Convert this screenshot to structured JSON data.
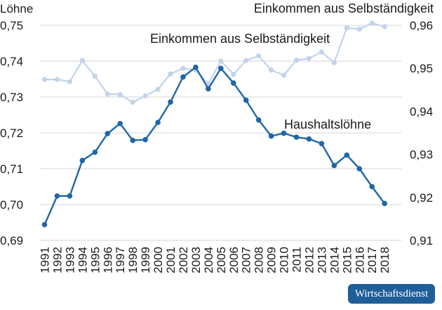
{
  "brand": {
    "label": "Wirtschaftsdienst",
    "color": "#1f5e98"
  },
  "chart_data": {
    "type": "line",
    "title": "",
    "grid": true,
    "x": [
      "1991",
      "1992",
      "1993",
      "1994",
      "1995",
      "1996",
      "1997",
      "1998",
      "1999",
      "2000",
      "2001",
      "2002",
      "2003",
      "2004",
      "2005",
      "2006",
      "2007",
      "2008",
      "2009",
      "2010",
      "2011",
      "2012",
      "2013",
      "2014",
      "2015",
      "2016",
      "2017",
      "2018"
    ],
    "y_left": {
      "label": "Löhne",
      "range": [
        0.69,
        0.75
      ],
      "ticks": [
        "0,69",
        "0,70",
        "0,71",
        "0,72",
        "0,73",
        "0,74",
        "0,75"
      ]
    },
    "y_right": {
      "label": "Einkommen aus Selbständigkeit",
      "range": [
        0.91,
        0.96
      ],
      "ticks": [
        "0,91",
        "0,92",
        "0,93",
        "0,94",
        "0,95",
        "0,96"
      ]
    },
    "series": [
      {
        "name": "Haushaltslöhne",
        "axis": "left",
        "color": "#1f66a8",
        "values": [
          0.6944,
          0.7024,
          0.7024,
          0.7123,
          0.7146,
          0.7198,
          0.7226,
          0.7179,
          0.7181,
          0.7229,
          0.7286,
          0.7356,
          0.7383,
          0.7323,
          0.738,
          0.7339,
          0.7291,
          0.7236,
          0.7191,
          0.7199,
          0.7188,
          0.7183,
          0.717,
          0.7109,
          0.7138,
          0.71,
          0.705,
          0.7003
        ]
      },
      {
        "name": "Einkommen aus Selbständigkeit",
        "axis": "right",
        "color": "#c2d3ea",
        "values": [
          0.9474,
          0.9474,
          0.9469,
          0.9518,
          0.9482,
          0.944,
          0.9439,
          0.9421,
          0.9436,
          0.9451,
          0.9487,
          0.95,
          0.9496,
          0.9464,
          0.9517,
          0.9486,
          0.9518,
          0.9529,
          0.9496,
          0.9484,
          0.9519,
          0.9523,
          0.9538,
          0.9513,
          0.9594,
          0.9591,
          0.9605,
          0.9597
        ]
      }
    ],
    "annotations": [
      {
        "text": "Einkommen aus Selbständigkeit"
      },
      {
        "text": "Einkommen aus Selbständigkeit"
      },
      {
        "text": "Haushaltslöhne"
      }
    ]
  }
}
